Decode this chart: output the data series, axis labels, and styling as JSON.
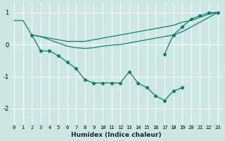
{
  "xlabel": "Humidex (Indice chaleur)",
  "x_values": [
    0,
    1,
    2,
    3,
    4,
    5,
    6,
    7,
    8,
    9,
    10,
    11,
    12,
    13,
    14,
    15,
    16,
    17,
    18,
    19,
    20,
    21,
    22,
    23
  ],
  "line1_y": [
    0.75,
    0.75,
    0.3,
    0.25,
    0.2,
    0.15,
    0.1,
    0.1,
    0.1,
    0.15,
    0.2,
    0.25,
    0.3,
    0.35,
    0.4,
    0.45,
    0.5,
    0.55,
    0.6,
    0.7,
    0.75,
    0.85,
    0.95,
    1.0
  ],
  "line2_y": [
    null,
    null,
    0.3,
    0.25,
    0.15,
    0.05,
    -0.05,
    -0.1,
    -0.12,
    -0.1,
    -0.05,
    -0.02,
    0.0,
    0.05,
    0.1,
    0.15,
    0.2,
    0.25,
    0.3,
    0.4,
    0.55,
    0.7,
    0.85,
    1.0
  ],
  "line3_y": [
    null,
    null,
    0.3,
    -0.2,
    -0.2,
    -0.35,
    -0.55,
    -0.75,
    -1.1,
    -1.2,
    -1.2,
    -1.2,
    -1.2,
    -0.85,
    -1.2,
    -1.35,
    -1.6,
    -1.75,
    -1.45,
    -1.35,
    null,
    null,
    null,
    null
  ],
  "line4_y": [
    null,
    null,
    null,
    null,
    null,
    null,
    null,
    null,
    null,
    null,
    null,
    null,
    null,
    null,
    null,
    null,
    null,
    -0.3,
    0.3,
    0.55,
    0.8,
    0.9,
    1.0,
    1.0
  ],
  "line_color": "#1a7a6e",
  "bg_color": "#cce8e3",
  "grid_color": "#b0d8d0",
  "ylim": [
    -2.5,
    1.3
  ],
  "xlim": [
    -0.5,
    23.5
  ],
  "yticks": [
    -2,
    -1,
    0,
    1
  ],
  "xticks": [
    0,
    1,
    2,
    3,
    4,
    5,
    6,
    7,
    8,
    9,
    10,
    11,
    12,
    13,
    14,
    15,
    16,
    17,
    18,
    19,
    20,
    21,
    22,
    23
  ]
}
